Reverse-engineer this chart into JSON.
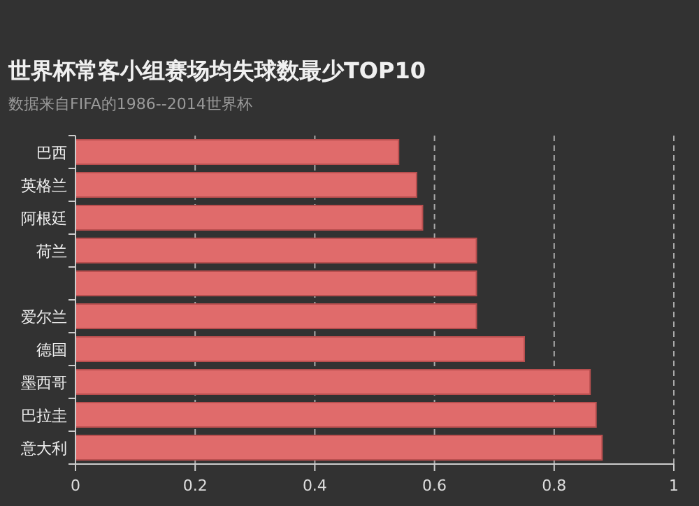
{
  "chart_data": {
    "type": "bar",
    "orientation": "horizontal",
    "title": "世界杯常客小组赛场均失球数最少TOP10",
    "subtitle": "数据来自FIFA的1986--2014世界杯",
    "categories": [
      "巴西",
      "英格兰",
      "阿根廷",
      "荷兰",
      null,
      "爱尔兰",
      "德国",
      "墨西哥",
      "巴拉圭",
      "意大利"
    ],
    "values": [
      0.54,
      0.57,
      0.58,
      0.67,
      0.67,
      0.67,
      0.75,
      0.86,
      0.87,
      0.88
    ],
    "color": "#e06b6b",
    "xlim": [
      0,
      1
    ],
    "xticks": [
      0,
      0.2,
      0.4,
      0.6,
      0.8,
      1
    ],
    "grid": "x"
  }
}
